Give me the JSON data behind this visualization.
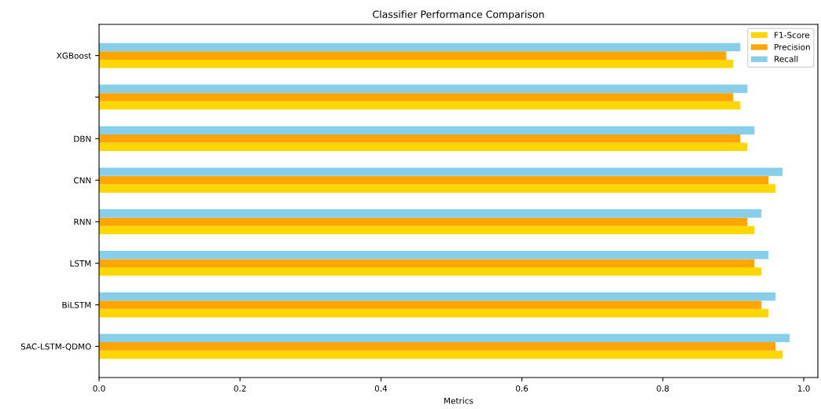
{
  "chart_data": {
    "type": "bar",
    "orientation": "horizontal",
    "title": "Classifier Performance Comparison",
    "xlabel": "Metrics",
    "categories": [
      "XGBoost",
      null,
      "DBN",
      "CNN",
      "RNN",
      "LSTM",
      "BiLSTM",
      "SAC-LSTM-QDMO"
    ],
    "series": [
      {
        "name": "F1-Score",
        "color": "#ffd700",
        "values": [
          0.9,
          0.91,
          0.92,
          0.96,
          0.93,
          0.94,
          0.95,
          0.97
        ]
      },
      {
        "name": "Precision",
        "color": "#ffa500",
        "values": [
          0.89,
          0.9,
          0.91,
          0.95,
          0.92,
          0.93,
          0.94,
          0.96
        ]
      },
      {
        "name": "Recall",
        "color": "#87ceeb",
        "values": [
          0.91,
          0.92,
          0.93,
          0.97,
          0.94,
          0.95,
          0.96,
          0.98
        ]
      }
    ],
    "xlim": [
      0,
      1.02
    ],
    "xticks": [
      {
        "value": 0,
        "label": "0.0"
      },
      0.2,
      0.4,
      0.6,
      0.8,
      {
        "value": 1,
        "label": "1.0"
      }
    ],
    "grid": false,
    "legend": "top right"
  }
}
